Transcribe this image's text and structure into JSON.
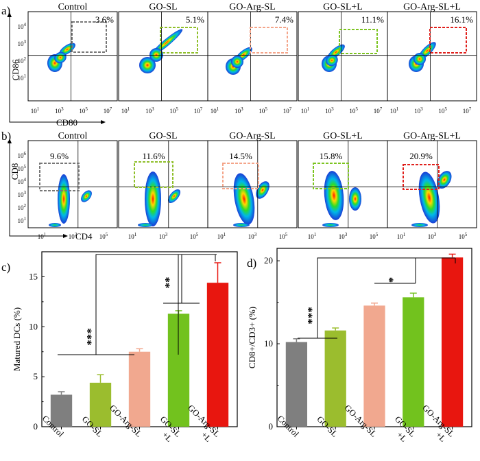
{
  "panel_labels": {
    "a": "a)",
    "b": "b)",
    "c": "c)",
    "d": "d)"
  },
  "flow_a": {
    "titles": [
      "Control",
      "GO-SL",
      "GO-Arg-SL",
      "GO-SL+L",
      "GO-Arg-SL+L"
    ],
    "percents": [
      "3.6%",
      "5.1%",
      "7.4%",
      "11.1%",
      "16.1%"
    ],
    "gate_colors": [
      "#777777",
      "#8fbf2a",
      "#f4a58a",
      "#7cc420",
      "#e0201c"
    ],
    "ylabel": "CD86",
    "xlabel": "CD80",
    "xticks": [
      "10",
      "10",
      "10",
      "10"
    ],
    "xexps": [
      "1",
      "3",
      "5",
      "7"
    ],
    "yticks": [
      "10",
      "10",
      "10",
      "10"
    ],
    "yexps": [
      "4",
      "3",
      "2",
      "1"
    ]
  },
  "flow_b": {
    "titles": [
      "Control",
      "GO-SL",
      "GO-Arg-SL",
      "GO-SL+L",
      "GO-Arg-SL+L"
    ],
    "percents": [
      "9.6%",
      "11.6%",
      "14.5%",
      "15.8%",
      "20.9%"
    ],
    "gate_colors": [
      "#777777",
      "#8fbf2a",
      "#f4a58a",
      "#7cc420",
      "#e0201c"
    ],
    "ylabel": "CD8",
    "xlabel": "CD4",
    "xticks": [
      "10",
      "10",
      "10"
    ],
    "xexps": [
      "1",
      "3",
      "5"
    ],
    "yticks": [
      "10",
      "10",
      "10",
      "10",
      "10",
      "10"
    ],
    "yexps": [
      "6",
      "5",
      "4",
      "3",
      "2",
      "1"
    ]
  },
  "chart_data": [
    {
      "type": "bar",
      "panel": "c",
      "categories": [
        "Control",
        "GO-SL",
        "GO-Arg-SL",
        "GO-SL +L",
        "GO-Arg-SL +L"
      ],
      "category_lines": [
        [
          "Control"
        ],
        [
          "GO-SL"
        ],
        [
          "GO-Arg-SL"
        ],
        [
          "GO-SL",
          "+L"
        ],
        [
          "GO-Arg-SL",
          "+L"
        ]
      ],
      "values": [
        3.2,
        4.4,
        7.5,
        11.3,
        14.4
      ],
      "errors": [
        0.3,
        0.8,
        0.3,
        0.3,
        2.0
      ],
      "colors": [
        "#7f7f7f",
        "#9bbd2e",
        "#f1a88f",
        "#72c21e",
        "#e8160f"
      ],
      "ylabel": "Matured DCs (%)",
      "ylim": [
        0,
        17.5
      ],
      "yticks": [
        0,
        5,
        10,
        15
      ],
      "significance": [
        "***",
        "**"
      ]
    },
    {
      "type": "bar",
      "panel": "d",
      "categories": [
        "Control",
        "GO-SL",
        "GO-Arg-SL",
        "GO-SL +L",
        "GO-Arg-SL +L"
      ],
      "category_lines": [
        [
          "Control"
        ],
        [
          "GO-SL"
        ],
        [
          "GO-Arg-SL"
        ],
        [
          "GO-SL",
          "+L"
        ],
        [
          "GO-Arg-SL",
          "+L"
        ]
      ],
      "values": [
        10.2,
        11.6,
        14.6,
        15.6,
        20.4
      ],
      "errors": [
        0.4,
        0.3,
        0.3,
        0.5,
        0.4
      ],
      "colors": [
        "#7f7f7f",
        "#9bbd2e",
        "#f1a88f",
        "#72c21e",
        "#e8160f"
      ],
      "ylabel": "CD8+/CD3+ (%)",
      "ylim": [
        0,
        21.5
      ],
      "yticks": [
        0,
        10,
        20
      ],
      "significance": [
        "***",
        "*"
      ]
    }
  ]
}
